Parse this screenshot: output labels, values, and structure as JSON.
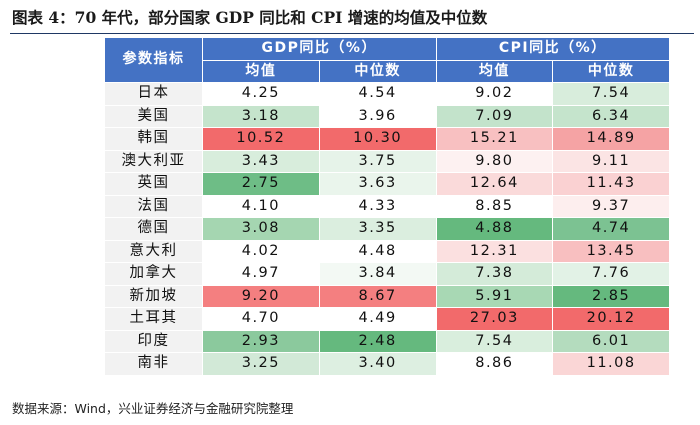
{
  "title": "图表 4：70 年代，部分国家 GDP 同比和 CPI 增速的均值及中位数",
  "header": {
    "indicator": "参数指标",
    "gdp_group": "GDP同比（%）",
    "cpi_group": "CPI同比（%）",
    "mean": "均值",
    "median": "中位数"
  },
  "rows": [
    {
      "country": "日本",
      "gdp_mean": "4.25",
      "gdp_median": "4.54",
      "cpi_mean": "9.02",
      "cpi_median": "7.54",
      "c1": "#ffffff",
      "c2": "#ffffff",
      "c3": "#ffffff",
      "c4": "#d8eddc"
    },
    {
      "country": "美国",
      "gdp_mean": "3.18",
      "gdp_median": "3.96",
      "cpi_mean": "7.09",
      "cpi_median": "6.34",
      "c1": "#c5e4cc",
      "c2": "#ffffff",
      "c3": "#c3e3cb",
      "c4": "#c5e4cc"
    },
    {
      "country": "韩国",
      "gdp_mean": "10.52",
      "gdp_median": "10.30",
      "cpi_mean": "15.21",
      "cpi_median": "14.89",
      "c1": "#f26a6b",
      "c2": "#f26a6b",
      "c3": "#f8c0c1",
      "c4": "#f5a3a4"
    },
    {
      "country": "澳大利亚",
      "gdp_mean": "3.43",
      "gdp_median": "3.75",
      "cpi_mean": "9.80",
      "cpi_median": "9.11",
      "c1": "#d8eddc",
      "c2": "#e6f3e9",
      "c3": "#fdf1f1",
      "c4": "#fbe4e4"
    },
    {
      "country": "英国",
      "gdp_mean": "2.75",
      "gdp_median": "3.63",
      "cpi_mean": "12.64",
      "cpi_median": "11.43",
      "c1": "#6ebd86",
      "c2": "#eaf5ec",
      "c3": "#fadada",
      "c4": "#fad1d2"
    },
    {
      "country": "法国",
      "gdp_mean": "4.10",
      "gdp_median": "4.33",
      "cpi_mean": "8.85",
      "cpi_median": "9.37",
      "c1": "#ffffff",
      "c2": "#ffffff",
      "c3": "#ffffff",
      "c4": "#fdeeee"
    },
    {
      "country": "德国",
      "gdp_mean": "3.08",
      "gdp_median": "3.35",
      "cpi_mean": "4.88",
      "cpi_median": "4.74",
      "c1": "#a5d6b1",
      "c2": "#dbeedf",
      "c3": "#65b97e",
      "c4": "#7cc292"
    },
    {
      "country": "意大利",
      "gdp_mean": "4.02",
      "gdp_median": "4.48",
      "cpi_mean": "12.31",
      "cpi_median": "13.45",
      "c1": "#ffffff",
      "c2": "#ffffff",
      "c3": "#fbe0e0",
      "c4": "#f8bfc0"
    },
    {
      "country": "加拿大",
      "gdp_mean": "4.97",
      "gdp_median": "3.84",
      "cpi_mean": "7.38",
      "cpi_median": "7.76",
      "c1": "#ffffff",
      "c2": "#f3f9f4",
      "c3": "#d4ebd9",
      "c4": "#e2f2e6"
    },
    {
      "country": "新加坡",
      "gdp_mean": "9.20",
      "gdp_median": "8.67",
      "cpi_mean": "5.91",
      "cpi_median": "2.85",
      "c1": "#f47f80",
      "c2": "#f47f80",
      "c3": "#a8d8b4",
      "c4": "#65b97e"
    },
    {
      "country": "土耳其",
      "gdp_mean": "4.70",
      "gdp_median": "4.49",
      "cpi_mean": "27.03",
      "cpi_median": "20.12",
      "c1": "#ffffff",
      "c2": "#ffffff",
      "c3": "#f26a6b",
      "c4": "#f26a6b"
    },
    {
      "country": "印度",
      "gdp_mean": "2.93",
      "gdp_median": "2.48",
      "cpi_mean": "7.54",
      "cpi_median": "6.01",
      "c1": "#8bc99d",
      "c2": "#65b97e",
      "c3": "#d9eedd",
      "c4": "#b4dcbe"
    },
    {
      "country": "南非",
      "gdp_mean": "3.25",
      "gdp_median": "3.40",
      "cpi_mean": "8.86",
      "cpi_median": "11.08",
      "c1": "#d2e9d7",
      "c2": "#ddefe1",
      "c3": "#ffffff",
      "c4": "#fad6d6"
    }
  ],
  "source": "数据来源：Wind，兴业证券经济与金融研究院整理"
}
